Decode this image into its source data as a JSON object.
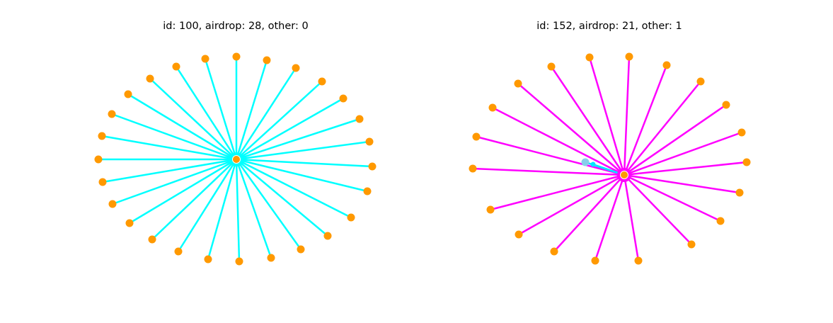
{
  "panels": [
    {
      "title": "id: 100, airdrop: 28, other: 0"
    },
    {
      "title": "id: 152, airdrop: 21, other: 1"
    }
  ]
}
